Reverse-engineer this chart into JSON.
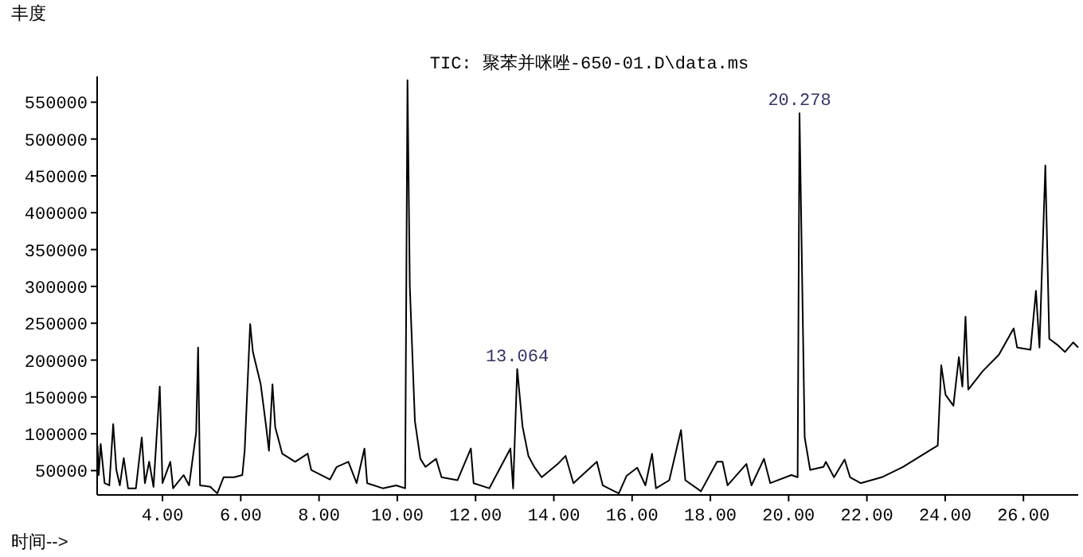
{
  "chart_data": {
    "type": "line",
    "title": "TIC: 聚苯并咪唑-650-01.D\\data.ms",
    "ylabel": "丰度",
    "xlabel": "时间-->",
    "x": [
      2.34,
      2.37,
      2.42,
      2.52,
      2.64,
      2.74,
      2.82,
      2.91,
      3.01,
      3.12,
      3.32,
      3.47,
      3.55,
      3.66,
      3.77,
      3.93,
      4.0,
      4.2,
      4.27,
      4.54,
      4.68,
      4.86,
      4.91,
      4.96,
      5.22,
      5.4,
      5.56,
      5.83,
      6.04,
      6.1,
      6.24,
      6.31,
      6.51,
      6.65,
      6.72,
      6.81,
      6.88,
      7.06,
      7.39,
      7.71,
      7.8,
      8.28,
      8.45,
      8.75,
      8.96,
      9.16,
      9.23,
      9.63,
      9.97,
      10.2,
      10.26,
      10.32,
      10.45,
      10.59,
      10.72,
      10.99,
      11.13,
      11.54,
      11.88,
      11.95,
      12.35,
      12.89,
      12.96,
      13.064,
      13.2,
      13.35,
      13.5,
      13.69,
      14.1,
      14.3,
      14.5,
      15.1,
      15.25,
      15.66,
      15.86,
      16.13,
      16.34,
      16.51,
      16.61,
      16.95,
      17.25,
      17.36,
      17.76,
      18.17,
      18.31,
      18.44,
      18.92,
      19.05,
      19.37,
      19.53,
      20.07,
      20.23,
      20.278,
      20.41,
      20.55,
      20.89,
      20.95,
      21.16,
      21.43,
      21.57,
      21.84,
      22.38,
      22.92,
      23.47,
      23.81,
      23.9,
      24.01,
      24.21,
      24.35,
      24.44,
      24.52,
      24.59,
      24.96,
      25.37,
      25.75,
      25.84,
      26.18,
      26.32,
      26.41,
      26.56,
      26.66,
      26.86,
      27.06,
      27.27,
      27.4
    ],
    "series": [
      {
        "color": "#000000",
        "values": [
          84000,
          44000,
          86000,
          33000,
          30000,
          113000,
          51000,
          30000,
          67000,
          26000,
          26000,
          95000,
          33000,
          62000,
          28000,
          164000,
          33000,
          62000,
          26000,
          44000,
          30000,
          102000,
          217000,
          30000,
          28000,
          19000,
          41000,
          41000,
          44000,
          77000,
          249000,
          211000,
          167000,
          109000,
          77000,
          167000,
          109000,
          73000,
          62000,
          73000,
          51000,
          38000,
          55000,
          62000,
          33000,
          80000,
          33000,
          26000,
          30000,
          26000,
          580000,
          300000,
          117000,
          66000,
          55000,
          66000,
          41000,
          37000,
          80000,
          33000,
          26000,
          80000,
          26000,
          188000,
          110000,
          70000,
          55000,
          41000,
          59000,
          70000,
          33000,
          62000,
          30000,
          19000,
          43000,
          54000,
          30000,
          73000,
          26000,
          37000,
          105000,
          37000,
          22000,
          62000,
          62000,
          30000,
          59000,
          30000,
          66000,
          33000,
          44000,
          41000,
          535000,
          95000,
          51000,
          55000,
          62000,
          41000,
          65000,
          41000,
          33000,
          41000,
          55000,
          73000,
          84000,
          193000,
          153000,
          138000,
          204000,
          164000,
          259000,
          160000,
          185000,
          207000,
          243000,
          217000,
          214000,
          294000,
          217000,
          464000,
          229000,
          221000,
          211000,
          224000,
          217000
        ]
      }
    ],
    "xlim": [
      2.33,
      27.4
    ],
    "ylim": [
      17000,
      585000
    ],
    "xticks": [
      {
        "value": 4,
        "label": "4.00"
      },
      {
        "value": 6,
        "label": "6.00"
      },
      {
        "value": 8,
        "label": "8.00"
      },
      {
        "value": 10,
        "label": "10.00"
      },
      {
        "value": 12,
        "label": "12.00"
      },
      {
        "value": 14,
        "label": "14.00"
      },
      {
        "value": 16,
        "label": "16.00"
      },
      {
        "value": 18,
        "label": "18.00"
      },
      {
        "value": 20,
        "label": "20.00"
      },
      {
        "value": 22,
        "label": "22.00"
      },
      {
        "value": 24,
        "label": "24.00"
      },
      {
        "value": 26,
        "label": "26.00"
      }
    ],
    "yticks": [
      50000,
      100000,
      150000,
      200000,
      250000,
      300000,
      350000,
      400000,
      450000,
      500000,
      550000
    ],
    "annotations": [
      {
        "text": "13.064",
        "x": 13.064,
        "y": 188000
      },
      {
        "text": "20.278",
        "x": 20.278,
        "y": 535000
      }
    ]
  }
}
